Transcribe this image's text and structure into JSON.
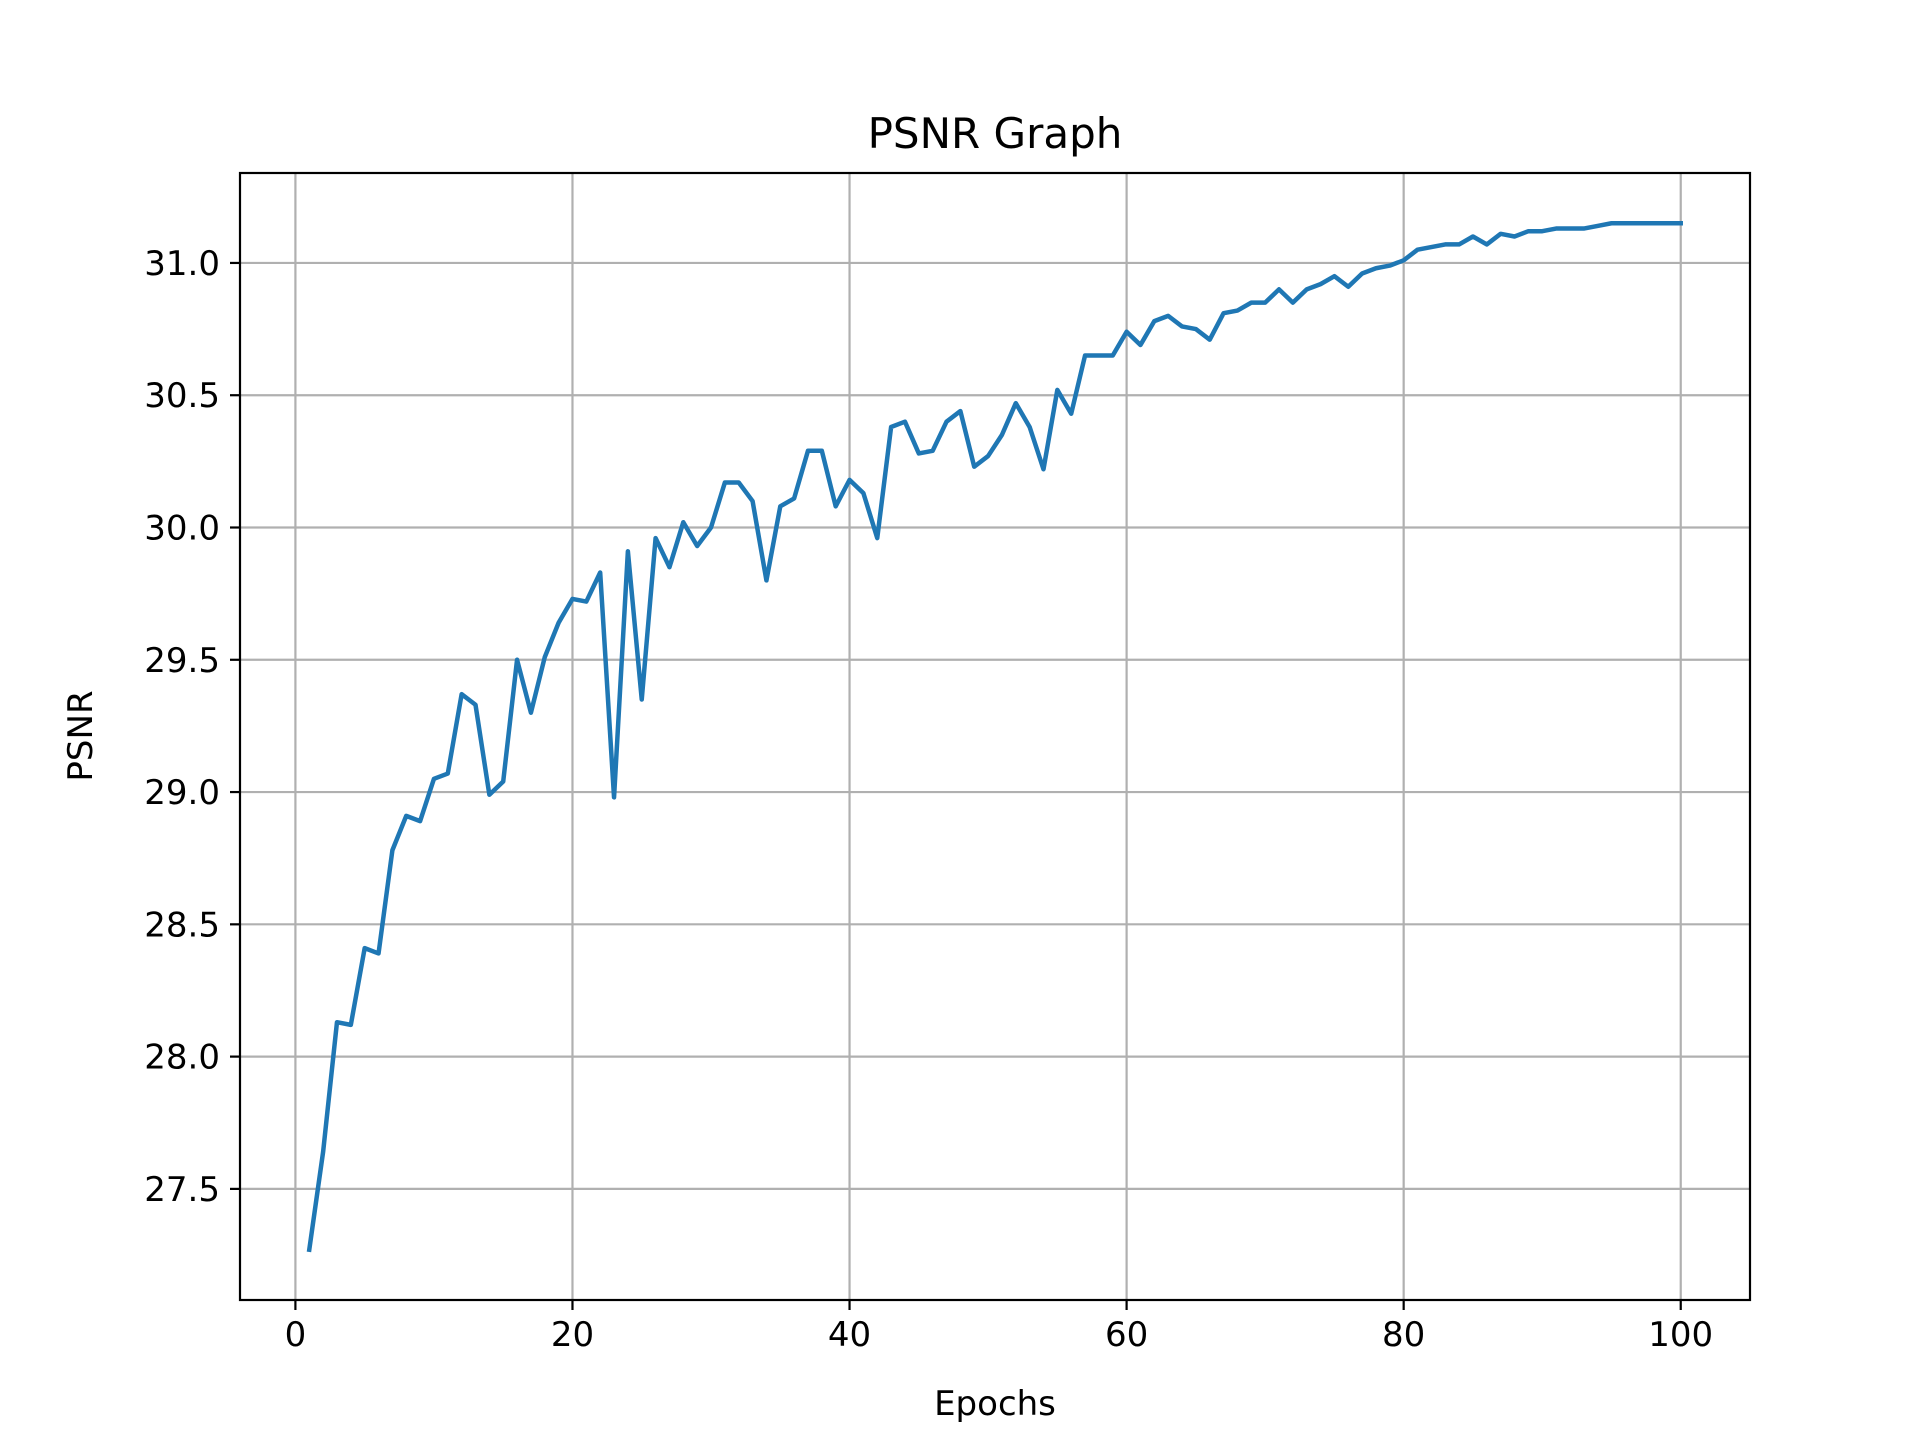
{
  "chart_data": {
    "type": "line",
    "title": "PSNR Graph",
    "xlabel": "Epochs",
    "ylabel": "PSNR",
    "xlim": [
      -4,
      105
    ],
    "ylim": [
      27.08,
      31.34
    ],
    "xticks": [
      0,
      20,
      40,
      60,
      80,
      100
    ],
    "xtick_labels": [
      "0",
      "20",
      "40",
      "60",
      "80",
      "100"
    ],
    "yticks": [
      27.5,
      28.0,
      28.5,
      29.0,
      29.5,
      30.0,
      30.5,
      31.0
    ],
    "ytick_labels": [
      "27.5",
      "28.0",
      "28.5",
      "29.0",
      "29.5",
      "30.0",
      "30.5",
      "31.0"
    ],
    "grid": true,
    "line_color": "#1f77b4",
    "x": [
      1,
      2,
      3,
      4,
      5,
      6,
      7,
      8,
      9,
      10,
      11,
      12,
      13,
      14,
      15,
      16,
      17,
      18,
      19,
      20,
      21,
      22,
      23,
      24,
      25,
      26,
      27,
      28,
      29,
      30,
      31,
      32,
      33,
      34,
      35,
      36,
      37,
      38,
      39,
      40,
      41,
      42,
      43,
      44,
      45,
      46,
      47,
      48,
      49,
      50,
      51,
      52,
      53,
      54,
      55,
      56,
      57,
      58,
      59,
      60,
      61,
      62,
      63,
      64,
      65,
      66,
      67,
      68,
      69,
      70,
      71,
      72,
      73,
      74,
      75,
      76,
      77,
      78,
      79,
      80,
      81,
      82,
      83,
      84,
      85,
      86,
      87,
      88,
      89,
      90,
      91,
      92,
      93,
      94,
      95,
      96,
      97,
      98,
      99,
      100
    ],
    "values": [
      27.27,
      27.64,
      28.13,
      28.12,
      28.41,
      28.39,
      28.78,
      28.91,
      28.89,
      29.05,
      29.07,
      29.37,
      29.33,
      28.99,
      29.04,
      29.5,
      29.3,
      29.51,
      29.64,
      29.73,
      29.72,
      29.83,
      28.98,
      29.91,
      29.35,
      29.96,
      29.85,
      30.02,
      29.93,
      30.0,
      30.17,
      30.17,
      30.1,
      29.8,
      30.08,
      30.11,
      30.29,
      30.29,
      30.08,
      30.18,
      30.13,
      29.96,
      30.38,
      30.4,
      30.28,
      30.29,
      30.4,
      30.44,
      30.23,
      30.27,
      30.35,
      30.47,
      30.38,
      30.22,
      30.52,
      30.43,
      30.65,
      30.65,
      30.65,
      30.74,
      30.69,
      30.78,
      30.8,
      30.76,
      30.75,
      30.71,
      30.81,
      30.82,
      30.85,
      30.85,
      30.9,
      30.85,
      30.9,
      30.92,
      30.95,
      30.91,
      30.96,
      30.98,
      30.99,
      31.01,
      31.05,
      31.06,
      31.07,
      31.07,
      31.1,
      31.07,
      31.11,
      31.1,
      31.12,
      31.12,
      31.13,
      31.13,
      31.13,
      31.14,
      31.15,
      31.15,
      31.15,
      31.15,
      31.15,
      31.15
    ]
  }
}
